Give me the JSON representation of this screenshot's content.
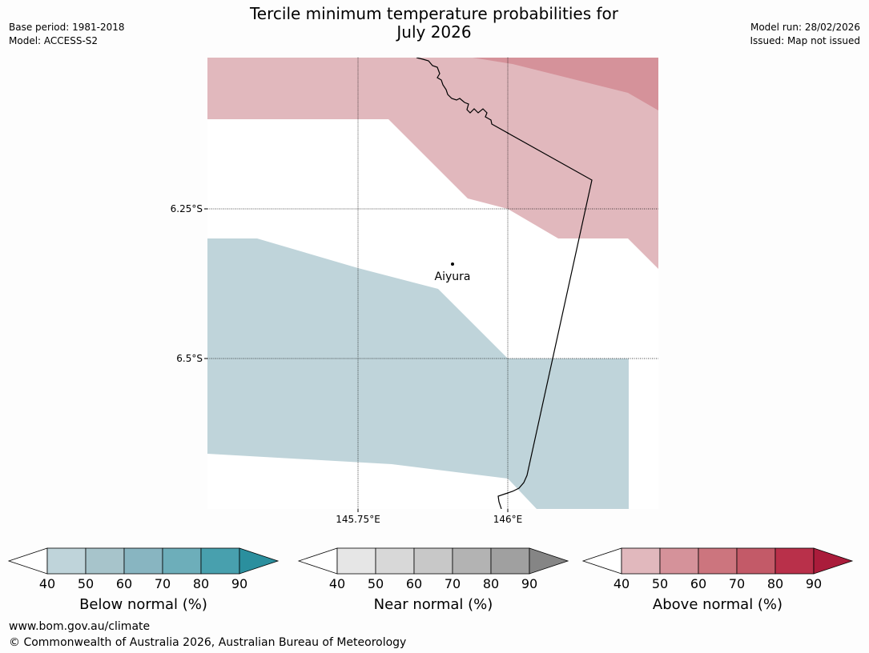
{
  "header": {
    "title_line1": "Tercile minimum temperature probabilities for",
    "title_line2": "July 2026",
    "base_period": "Base period: 1981-2018",
    "model": "Model: ACCESS-S2",
    "model_run": "Model run: 28/02/2026",
    "issued": "Issued: Map not issued"
  },
  "map": {
    "lat_labels": [
      "6.25°S",
      "6.5°S"
    ],
    "lon_labels": [
      "145.75°E",
      "146°E"
    ],
    "place": {
      "name": "Aiyura"
    }
  },
  "legends": [
    {
      "title": "Below normal (%)",
      "ticks": [
        "40",
        "50",
        "60",
        "70",
        "80",
        "90"
      ],
      "colors": [
        "#ffffff",
        "#bfd4da",
        "#a7c4cb",
        "#88b5c1",
        "#6daeba",
        "#48a0ae",
        "#2b8f9e"
      ]
    },
    {
      "title": "Near normal (%)",
      "ticks": [
        "40",
        "50",
        "60",
        "70",
        "80",
        "90"
      ],
      "colors": [
        "#ffffff",
        "#e6e6e6",
        "#d8d8d8",
        "#c8c8c8",
        "#b3b3b3",
        "#a0a0a0",
        "#858585"
      ]
    },
    {
      "title": "Above normal (%)",
      "ticks": [
        "40",
        "50",
        "60",
        "70",
        "80",
        "90"
      ],
      "colors": [
        "#ffffff",
        "#e1b8bd",
        "#d5929a",
        "#cc757e",
        "#c35a68",
        "#b9304a",
        "#aa1c3b"
      ]
    }
  ],
  "footer": {
    "url": "www.bom.gov.au/climate",
    "copyright": "© Commonwealth of Australia 2026, Australian Bureau of Meteorology"
  }
}
